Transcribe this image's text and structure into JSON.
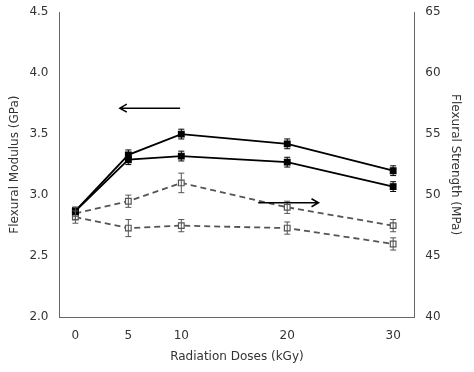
{
  "chart_data": {
    "type": "line",
    "xlabel": "Radiation Doses (kGy)",
    "ylabel": "Flexural Modulus (GPa)",
    "y2label": "Flexural Strength (MPa)",
    "x": [
      0,
      5,
      10,
      20,
      30
    ],
    "series": [
      {
        "color": "#000000",
        "marker": "square",
        "line_style": "solid",
        "values": [
          2.87,
          3.33,
          3.5,
          3.42,
          3.2
        ],
        "yerr": [
          0.03,
          0.04,
          0.04,
          0.04,
          0.04
        ]
      },
      {
        "color": "#000000",
        "marker": "square",
        "line_style": "solid",
        "values": [
          2.87,
          3.29,
          3.32,
          3.27,
          3.07
        ],
        "yerr": [
          0.03,
          0.04,
          0.04,
          0.04,
          0.04
        ]
      },
      {
        "axis": "y2",
        "color": "#555555",
        "marker": "square",
        "line_style": "dashed",
        "values": [
          48.5,
          49.5,
          51.0,
          49.0,
          47.5
        ],
        "yerr": [
          0.5,
          0.5,
          0.8,
          0.5,
          0.5
        ]
      },
      {
        "axis": "y2",
        "color": "#555555",
        "marker": "square",
        "line_style": "dashed",
        "values": [
          48.2,
          47.3,
          47.5,
          47.3,
          46.0
        ],
        "yerr": [
          0.5,
          0.7,
          0.5,
          0.5,
          0.5
        ]
      }
    ],
    "xlim": [
      -1.5,
      32
    ],
    "xticks": [
      0,
      5,
      10,
      20,
      30
    ],
    "ylim": [
      2.0,
      4.5
    ],
    "yticks": [
      {
        "value": 2.0,
        "label": "2.0"
      },
      2.5,
      {
        "value": 3.0,
        "label": "3.0"
      },
      3.5,
      {
        "value": 4.0,
        "label": "4.0"
      },
      4.5
    ],
    "y2lim": [
      40,
      65
    ],
    "y2ticks": [
      40,
      45,
      50,
      55,
      60,
      65
    ],
    "grid": false
  }
}
